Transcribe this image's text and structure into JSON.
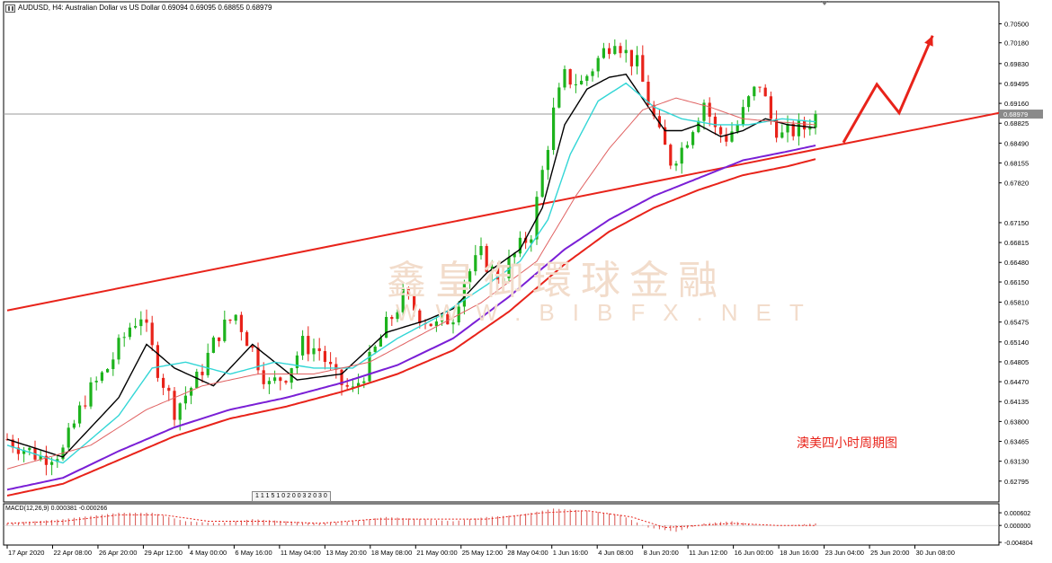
{
  "header": {
    "text": "AUDUSD, H4:  Australian Dollar vs US Dollar  0.69094 0.69095 0.68855 0.68979"
  },
  "macd_label": "MACD(12,26,9) 0.000381 -0.000266",
  "period_tag": "1 1 1 5 1 0 2 0 0 3 2 0 3 0",
  "annotation": "澳美四小时周期图",
  "watermark": {
    "cn": "鑫皇御環球金融",
    "en": "WWW.BIBFX.NET"
  },
  "colors": {
    "bull": "#1db31d",
    "bear": "#e8231a",
    "ma_fast": "#000000",
    "ma_mid": "#33d6d6",
    "ma_slow": "#e06262",
    "ma_long": "#7a1fd6",
    "ma_longest": "#e8231a",
    "trendline": "#e8231a",
    "arrow": "#e8231a"
  },
  "chart_data": {
    "type": "candlestick",
    "symbol": "AUDUSD",
    "timeframe": "H4",
    "last_price": "0.68979",
    "ylim": [
      0.6255,
      0.7075
    ],
    "y_ticks": [
      "0.70500",
      "0.70180",
      "0.69830",
      "0.69495",
      "0.69160",
      "0.68825",
      "0.68490",
      "0.68155",
      "0.67820",
      "0.67150",
      "0.66815",
      "0.66480",
      "0.66150",
      "0.65810",
      "0.65475",
      "0.65140",
      "0.64805",
      "0.64470",
      "0.64135",
      "0.63800",
      "0.63465",
      "0.63130",
      "0.62795"
    ],
    "x_labels": [
      "17 Apr 2020",
      "22 Apr 08:00",
      "26 Apr 20:00",
      "29 Apr 12:00",
      "4 May 00:00",
      "6 May 16:00",
      "11 May 04:00",
      "13 May 20:00",
      "18 May 08:00",
      "21 May 00:00",
      "25 May 12:00",
      "28 May 04:00",
      "1 Jun 16:00",
      "4 Jun 08:00",
      "8 Jun 20:00",
      "11 Jun 12:00",
      "16 Jun 00:00",
      "18 Jun 16:00",
      "23 Jun 04:00",
      "25 Jun 20:00",
      "30 Jun 08:00"
    ],
    "close_path": [
      [
        0,
        0.635
      ],
      [
        6,
        0.632
      ],
      [
        10,
        0.633
      ],
      [
        14,
        0.642
      ],
      [
        18,
        0.647
      ],
      [
        22,
        0.654
      ],
      [
        24,
        0.656
      ],
      [
        27,
        0.647
      ],
      [
        30,
        0.64
      ],
      [
        34,
        0.645
      ],
      [
        38,
        0.653
      ],
      [
        41,
        0.656
      ],
      [
        44,
        0.65
      ],
      [
        47,
        0.644
      ],
      [
        50,
        0.646
      ],
      [
        53,
        0.651
      ],
      [
        56,
        0.65
      ],
      [
        59,
        0.645
      ],
      [
        62,
        0.643
      ],
      [
        65,
        0.648
      ],
      [
        68,
        0.654
      ],
      [
        71,
        0.659
      ],
      [
        74,
        0.656
      ],
      [
        77,
        0.654
      ],
      [
        80,
        0.656
      ],
      [
        82,
        0.662
      ],
      [
        85,
        0.666
      ],
      [
        88,
        0.662
      ],
      [
        91,
        0.666
      ],
      [
        94,
        0.67
      ],
      [
        96,
        0.68
      ],
      [
        98,
        0.69
      ],
      [
        100,
        0.696
      ],
      [
        103,
        0.695
      ],
      [
        106,
        0.699
      ],
      [
        109,
        0.703
      ],
      [
        111,
        0.7
      ],
      [
        113,
        0.698
      ],
      [
        115,
        0.692
      ],
      [
        117,
        0.686
      ],
      [
        119,
        0.682
      ],
      [
        121,
        0.684
      ],
      [
        123,
        0.688
      ],
      [
        125,
        0.692
      ],
      [
        127,
        0.687
      ],
      [
        129,
        0.686
      ],
      [
        131,
        0.688
      ],
      [
        133,
        0.692
      ],
      [
        135,
        0.695
      ],
      [
        137,
        0.689
      ],
      [
        139,
        0.686
      ],
      [
        141,
        0.687
      ],
      [
        143,
        0.6875
      ],
      [
        145,
        0.6898
      ]
    ],
    "moving_averages": [
      {
        "key": "ma_fast",
        "points": [
          [
            0,
            0.635
          ],
          [
            10,
            0.632
          ],
          [
            20,
            0.642
          ],
          [
            25,
            0.651
          ],
          [
            30,
            0.647
          ],
          [
            37,
            0.644
          ],
          [
            44,
            0.651
          ],
          [
            52,
            0.645
          ],
          [
            60,
            0.646
          ],
          [
            68,
            0.653
          ],
          [
            75,
            0.655
          ],
          [
            80,
            0.657
          ],
          [
            86,
            0.663
          ],
          [
            92,
            0.667
          ],
          [
            96,
            0.674
          ],
          [
            100,
            0.688
          ],
          [
            104,
            0.694
          ],
          [
            108,
            0.696
          ],
          [
            111,
            0.6965
          ],
          [
            115,
            0.691
          ],
          [
            118,
            0.687
          ],
          [
            121,
            0.687
          ],
          [
            124,
            0.688
          ],
          [
            128,
            0.686
          ],
          [
            132,
            0.687
          ],
          [
            136,
            0.689
          ],
          [
            140,
            0.688
          ],
          [
            145,
            0.6875
          ]
        ]
      },
      {
        "key": "ma_mid",
        "points": [
          [
            0,
            0.634
          ],
          [
            10,
            0.631
          ],
          [
            20,
            0.639
          ],
          [
            26,
            0.647
          ],
          [
            32,
            0.648
          ],
          [
            40,
            0.646
          ],
          [
            48,
            0.648
          ],
          [
            55,
            0.647
          ],
          [
            62,
            0.647
          ],
          [
            70,
            0.652
          ],
          [
            78,
            0.656
          ],
          [
            86,
            0.661
          ],
          [
            92,
            0.665
          ],
          [
            97,
            0.672
          ],
          [
            101,
            0.683
          ],
          [
            106,
            0.692
          ],
          [
            111,
            0.695
          ],
          [
            116,
            0.691
          ],
          [
            121,
            0.689
          ],
          [
            127,
            0.688
          ],
          [
            133,
            0.688
          ],
          [
            139,
            0.689
          ],
          [
            145,
            0.6885
          ]
        ]
      },
      {
        "key": "ma_slow",
        "points": [
          [
            0,
            0.63
          ],
          [
            15,
            0.634
          ],
          [
            25,
            0.64
          ],
          [
            35,
            0.644
          ],
          [
            45,
            0.646
          ],
          [
            55,
            0.646
          ],
          [
            65,
            0.648
          ],
          [
            75,
            0.653
          ],
          [
            85,
            0.658
          ],
          [
            95,
            0.665
          ],
          [
            102,
            0.676
          ],
          [
            108,
            0.684
          ],
          [
            114,
            0.6905
          ],
          [
            120,
            0.6925
          ],
          [
            126,
            0.691
          ],
          [
            132,
            0.689
          ],
          [
            138,
            0.6885
          ],
          [
            145,
            0.688
          ]
        ]
      },
      {
        "key": "ma_long",
        "points": [
          [
            0,
            0.6265
          ],
          [
            10,
            0.6285
          ],
          [
            20,
            0.633
          ],
          [
            30,
            0.637
          ],
          [
            40,
            0.64
          ],
          [
            50,
            0.642
          ],
          [
            60,
            0.6445
          ],
          [
            70,
            0.6475
          ],
          [
            80,
            0.652
          ],
          [
            90,
            0.659
          ],
          [
            100,
            0.667
          ],
          [
            108,
            0.672
          ],
          [
            116,
            0.676
          ],
          [
            124,
            0.679
          ],
          [
            132,
            0.682
          ],
          [
            140,
            0.6835
          ],
          [
            145,
            0.6845
          ]
        ]
      },
      {
        "key": "ma_longest",
        "points": [
          [
            0,
            0.6255
          ],
          [
            10,
            0.6275
          ],
          [
            20,
            0.6315
          ],
          [
            30,
            0.6355
          ],
          [
            40,
            0.6385
          ],
          [
            50,
            0.6405
          ],
          [
            60,
            0.643
          ],
          [
            70,
            0.646
          ],
          [
            80,
            0.65
          ],
          [
            90,
            0.6565
          ],
          [
            100,
            0.6645
          ],
          [
            108,
            0.67
          ],
          [
            116,
            0.674
          ],
          [
            124,
            0.677
          ],
          [
            132,
            0.6795
          ],
          [
            140,
            0.681
          ],
          [
            145,
            0.6822
          ]
        ]
      }
    ],
    "trendline": [
      [
        0,
        0.6567
      ],
      [
        178,
        0.69
      ]
    ],
    "projection_arrow": [
      [
        150,
        0.685
      ],
      [
        156,
        0.6948
      ],
      [
        160,
        0.69
      ],
      [
        166,
        0.703
      ]
    ],
    "macd": {
      "ylim": [
        -0.0008,
        0.0009
      ],
      "y_ticks": [
        "0.000602",
        "0.000000",
        "-0.004804"
      ],
      "bars": [
        [
          0,
          0.0001
        ],
        [
          10,
          0.0003
        ],
        [
          20,
          0.0006
        ],
        [
          26,
          0.0006
        ],
        [
          32,
          0.0002
        ],
        [
          38,
          0.0001
        ],
        [
          44,
          0.0003
        ],
        [
          50,
          0.0002
        ],
        [
          56,
          0.0001
        ],
        [
          62,
          0.0002
        ],
        [
          68,
          0.0004
        ],
        [
          74,
          0.0003
        ],
        [
          80,
          0.0002
        ],
        [
          86,
          0.0004
        ],
        [
          92,
          0.0005
        ],
        [
          98,
          0.0008
        ],
        [
          104,
          0.0007
        ],
        [
          110,
          0.0005
        ],
        [
          115,
          -0.0001
        ],
        [
          120,
          -0.0003
        ],
        [
          125,
          0.0001
        ],
        [
          130,
          0.0002
        ],
        [
          135,
          0.0
        ],
        [
          140,
          0.0
        ],
        [
          145,
          0.0001
        ]
      ],
      "signal": [
        [
          0,
          0.0001
        ],
        [
          10,
          0.0002
        ],
        [
          20,
          0.0005
        ],
        [
          28,
          0.0005
        ],
        [
          36,
          0.0002
        ],
        [
          46,
          0.0002
        ],
        [
          56,
          0.0001
        ],
        [
          66,
          0.0003
        ],
        [
          76,
          0.0003
        ],
        [
          86,
          0.0003
        ],
        [
          96,
          0.0006
        ],
        [
          104,
          0.0007
        ],
        [
          112,
          0.0004
        ],
        [
          118,
          -0.0001
        ],
        [
          124,
          0.0
        ],
        [
          130,
          0.0001
        ],
        [
          138,
          0.0
        ],
        [
          145,
          0.0
        ]
      ]
    }
  }
}
